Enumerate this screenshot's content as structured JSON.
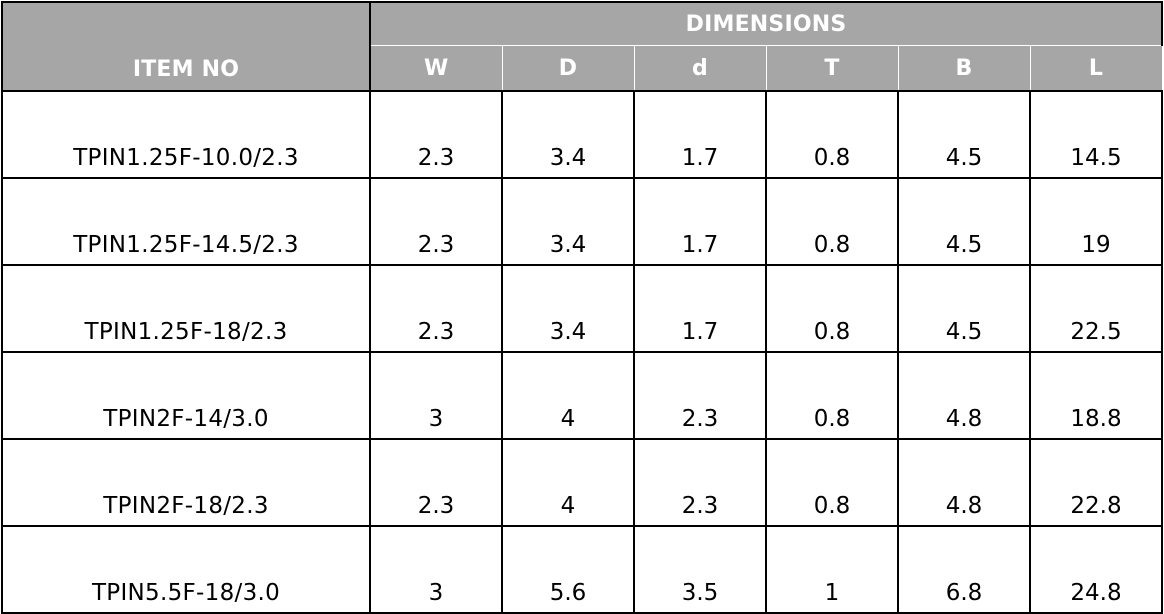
{
  "table": {
    "item_header": "ITEM NO",
    "group_header": "DIMENSIONS",
    "columns": [
      "W",
      "D",
      "d",
      "T",
      "B",
      "L"
    ],
    "rows": [
      {
        "item": "TPIN1.25F-10.0/2.3",
        "values": [
          "2.3",
          "3.4",
          "1.7",
          "0.8",
          "4.5",
          "14.5"
        ]
      },
      {
        "item": "TPIN1.25F-14.5/2.3",
        "values": [
          "2.3",
          "3.4",
          "1.7",
          "0.8",
          "4.5",
          "19"
        ]
      },
      {
        "item": "TPIN1.25F-18/2.3",
        "values": [
          "2.3",
          "3.4",
          "1.7",
          "0.8",
          "4.5",
          "22.5"
        ]
      },
      {
        "item": "TPIN2F-14/3.0",
        "values": [
          "3",
          "4",
          "2.3",
          "0.8",
          "4.8",
          "18.8"
        ]
      },
      {
        "item": "TPIN2F-18/2.3",
        "values": [
          "2.3",
          "4",
          "2.3",
          "0.8",
          "4.8",
          "22.8"
        ]
      },
      {
        "item": "TPIN5.5F-18/3.0",
        "values": [
          "3",
          "5.6",
          "3.5",
          "1",
          "6.8",
          "24.8"
        ]
      }
    ]
  },
  "colors": {
    "header_background": "#a6a6a6",
    "header_text": "#ffffff",
    "grid_lines": "#000000"
  }
}
